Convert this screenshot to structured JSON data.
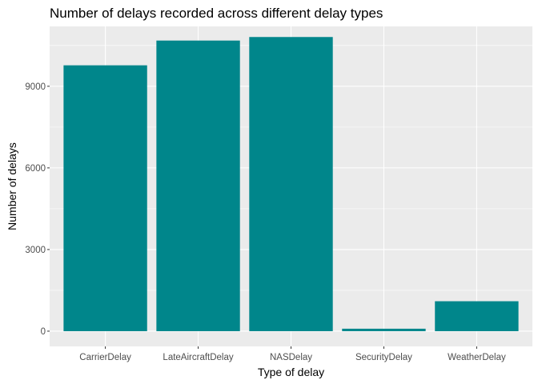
{
  "chart_data": {
    "type": "bar",
    "title": "Number of delays recorded across different delay types",
    "xlabel": "Type of delay",
    "ylabel": "Number of delays",
    "categories": [
      "CarrierDelay",
      "LateAircraftDelay",
      "NASDelay",
      "SecurityDelay",
      "WeatherDelay"
    ],
    "values": [
      9770,
      10680,
      10810,
      90,
      1100
    ],
    "ylim": [
      -560,
      11200
    ],
    "yticks": [
      0,
      3000,
      6000,
      9000
    ],
    "ytick_labels": [
      "0",
      "3000",
      "6000",
      "9000"
    ],
    "grid": true,
    "bar_color": "#00868B",
    "panel_background": "#EBEBEB",
    "grid_color": "#FFFFFF"
  }
}
